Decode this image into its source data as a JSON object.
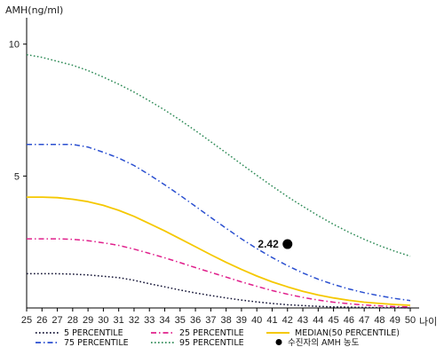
{
  "chart_data": {
    "type": "line",
    "ylabel": "AMH(ng/ml)",
    "xlabel": "나이",
    "xlim": [
      25,
      50
    ],
    "ylim": [
      0,
      11
    ],
    "x_ticks": [
      25,
      26,
      27,
      28,
      29,
      30,
      31,
      32,
      33,
      34,
      35,
      36,
      37,
      38,
      39,
      40,
      41,
      42,
      43,
      44,
      45,
      46,
      47,
      48,
      49,
      50
    ],
    "y_ticks": [
      5,
      10
    ],
    "grid": false,
    "legend_position": "bottom",
    "x": [
      25,
      26,
      27,
      28,
      29,
      30,
      31,
      32,
      33,
      34,
      35,
      36,
      37,
      38,
      39,
      40,
      41,
      42,
      43,
      44,
      45,
      46,
      47,
      48,
      49,
      50
    ],
    "series": [
      {
        "name": "5 PERCENTILE",
        "color": "#111133",
        "dash": "dot",
        "values": [
          1.3,
          1.3,
          1.3,
          1.28,
          1.25,
          1.2,
          1.15,
          1.05,
          0.92,
          0.8,
          0.68,
          0.57,
          0.47,
          0.38,
          0.3,
          0.23,
          0.17,
          0.12,
          0.09,
          0.06,
          0.04,
          0.03,
          0.02,
          0.01,
          0.01,
          0.0
        ]
      },
      {
        "name": "25 PERCENTILE",
        "color": "#e0208c",
        "dash": "dashdot",
        "values": [
          2.62,
          2.62,
          2.62,
          2.6,
          2.55,
          2.47,
          2.37,
          2.23,
          2.07,
          1.9,
          1.72,
          1.53,
          1.35,
          1.17,
          0.99,
          0.82,
          0.66,
          0.52,
          0.4,
          0.3,
          0.22,
          0.16,
          0.11,
          0.08,
          0.05,
          0.04
        ]
      },
      {
        "name": "MEDIAN(50 PERCENTILE)",
        "color": "#f5c800",
        "dash": "solid",
        "values": [
          4.2,
          4.2,
          4.18,
          4.12,
          4.03,
          3.89,
          3.7,
          3.47,
          3.2,
          2.92,
          2.62,
          2.32,
          2.02,
          1.73,
          1.46,
          1.21,
          0.99,
          0.8,
          0.63,
          0.49,
          0.38,
          0.29,
          0.22,
          0.17,
          0.13,
          0.1
        ]
      },
      {
        "name": "75 PERCENTILE",
        "color": "#2a4fd0",
        "dash": "dashdot",
        "values": [
          6.2,
          6.2,
          6.2,
          6.2,
          6.1,
          5.9,
          5.68,
          5.4,
          5.05,
          4.67,
          4.27,
          3.85,
          3.43,
          3.02,
          2.62,
          2.25,
          1.91,
          1.6,
          1.33,
          1.09,
          0.89,
          0.72,
          0.58,
          0.46,
          0.36,
          0.28
        ]
      },
      {
        "name": "95 PERCENTILE",
        "color": "#2e8b57",
        "dash": "dot",
        "values": [
          9.6,
          9.5,
          9.35,
          9.2,
          9.0,
          8.75,
          8.48,
          8.18,
          7.85,
          7.5,
          7.12,
          6.72,
          6.3,
          5.88,
          5.45,
          5.03,
          4.62,
          4.22,
          3.85,
          3.5,
          3.17,
          2.87,
          2.6,
          2.36,
          2.15,
          1.96
        ]
      }
    ],
    "points": [
      {
        "name": "수진자의 AMH 농도",
        "x": 42,
        "y": 2.42,
        "label": "2.42",
        "color": "#000000"
      }
    ]
  }
}
